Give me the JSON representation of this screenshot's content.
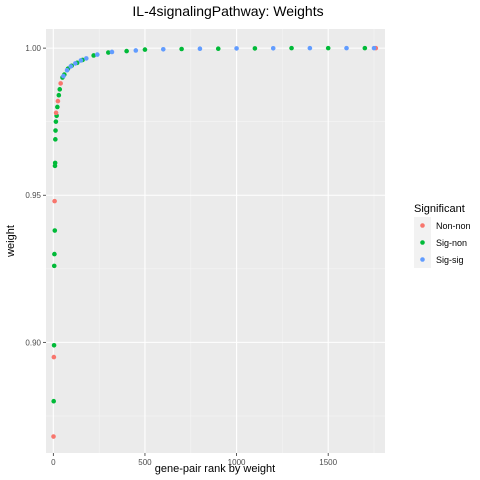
{
  "chart_data": {
    "type": "scatter",
    "title": "IL-4signalingPathway: Weights",
    "xlabel": "gene-pair rank by weight",
    "ylabel": "weight",
    "xlim": [
      -40,
      1810
    ],
    "ylim": [
      0.8624,
      1.0065
    ],
    "x_ticks": [
      0,
      500,
      1000,
      1500
    ],
    "x_tick_labels": [
      "0",
      "500",
      "1000",
      "1500"
    ],
    "y_ticks": [
      0.9,
      0.95,
      1.0
    ],
    "y_tick_labels": [
      "0.90",
      "0.95",
      "1.00"
    ],
    "grid": true,
    "background": "#EBEBEB",
    "legend": {
      "title": "Significant",
      "position": "right",
      "entries": [
        {
          "label": "Non-non",
          "color": "#F8766D"
        },
        {
          "label": "Sig-non",
          "color": "#00BA38"
        },
        {
          "label": "Sig-sig",
          "color": "#619CFF"
        }
      ]
    },
    "series": [
      {
        "name": "Non-non",
        "color": "#F8766D",
        "points": [
          [
            1,
            0.868
          ],
          [
            3,
            0.895
          ],
          [
            7,
            0.948
          ],
          [
            15,
            0.978
          ],
          [
            25,
            0.982
          ],
          [
            40,
            0.988
          ],
          [
            1760,
            1.0
          ]
        ]
      },
      {
        "name": "Sig-non",
        "color": "#00BA38",
        "points": [
          [
            2,
            0.88
          ],
          [
            4,
            0.899
          ],
          [
            5,
            0.926
          ],
          [
            6,
            0.93
          ],
          [
            8,
            0.938
          ],
          [
            9,
            0.96
          ],
          [
            10,
            0.961
          ],
          [
            11,
            0.969
          ],
          [
            12,
            0.972
          ],
          [
            14,
            0.975
          ],
          [
            18,
            0.977
          ],
          [
            22,
            0.98
          ],
          [
            30,
            0.984
          ],
          [
            35,
            0.986
          ],
          [
            50,
            0.99
          ],
          [
            60,
            0.991
          ],
          [
            80,
            0.993
          ],
          [
            100,
            0.994
          ],
          [
            130,
            0.995
          ],
          [
            160,
            0.996
          ],
          [
            220,
            0.9975
          ],
          [
            300,
            0.9985
          ],
          [
            400,
            0.999
          ],
          [
            500,
            0.9995
          ],
          [
            700,
            0.9997
          ],
          [
            900,
            0.9998
          ],
          [
            1100,
            0.9999
          ],
          [
            1300,
            1.0
          ],
          [
            1500,
            1.0
          ],
          [
            1700,
            1.0
          ]
        ]
      },
      {
        "name": "Sig-sig",
        "color": "#619CFF",
        "points": [
          [
            55,
            0.9905
          ],
          [
            75,
            0.9925
          ],
          [
            95,
            0.9938
          ],
          [
            120,
            0.9948
          ],
          [
            150,
            0.9958
          ],
          [
            180,
            0.9965
          ],
          [
            240,
            0.9978
          ],
          [
            320,
            0.9987
          ],
          [
            450,
            0.9992
          ],
          [
            600,
            0.9996
          ],
          [
            800,
            0.9998
          ],
          [
            1000,
            0.9999
          ],
          [
            1200,
            0.99995
          ],
          [
            1400,
            1.0
          ],
          [
            1600,
            1.0
          ],
          [
            1750,
            1.0
          ]
        ]
      }
    ]
  }
}
